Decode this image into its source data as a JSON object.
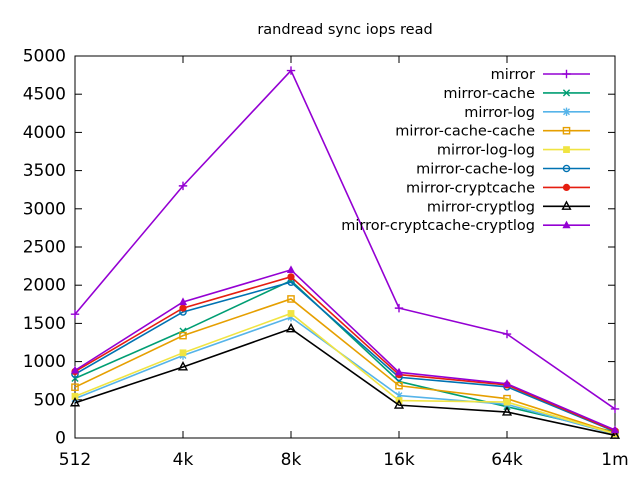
{
  "page": {
    "background": "#ffffff",
    "axis_color": "#000000",
    "text_color": "#000000"
  },
  "chart_data": {
    "type": "line",
    "title": "randread sync iops read",
    "xlabel": "",
    "ylabel": "",
    "categories": [
      "512",
      "4k",
      "8k",
      "16k",
      "64k",
      "1m"
    ],
    "ylim": [
      0,
      5000
    ],
    "yticks": [
      0,
      500,
      1000,
      1500,
      2000,
      2500,
      3000,
      3500,
      4000,
      4500,
      5000
    ],
    "grid": false,
    "legend_position": "top-right-inside",
    "series": [
      {
        "name": "mirror",
        "color": "#9400d3",
        "marker": "plus-marker-icon",
        "values": [
          1620,
          3300,
          4810,
          1700,
          1360,
          380
        ]
      },
      {
        "name": "mirror-cache",
        "color": "#009e73",
        "marker": "times-marker-icon",
        "values": [
          780,
          1400,
          2060,
          740,
          410,
          78
        ]
      },
      {
        "name": "mirror-log",
        "color": "#56b4e9",
        "marker": "asterisk-marker-icon",
        "values": [
          515,
          1080,
          1580,
          555,
          440,
          50
        ]
      },
      {
        "name": "mirror-cache-cache",
        "color": "#e69f00",
        "marker": "square-open-marker-icon",
        "values": [
          665,
          1340,
          1820,
          685,
          515,
          62
        ]
      },
      {
        "name": "mirror-log-log",
        "color": "#f0e442",
        "marker": "square-filled-marker-icon",
        "values": [
          545,
          1115,
          1630,
          490,
          470,
          55
        ]
      },
      {
        "name": "mirror-cache-log",
        "color": "#0072b2",
        "marker": "circle-open-marker-icon",
        "values": [
          835,
          1650,
          2040,
          795,
          670,
          85
        ]
      },
      {
        "name": "mirror-cryptcache",
        "color": "#e51e10",
        "marker": "circle-filled-marker-icon",
        "values": [
          870,
          1700,
          2110,
          830,
          695,
          92
        ]
      },
      {
        "name": "mirror-cryptlog",
        "color": "#000000",
        "marker": "triangle-open-marker-icon",
        "values": [
          460,
          930,
          1430,
          430,
          340,
          35
        ]
      },
      {
        "name": "mirror-cryptcache-cryptlog",
        "color": "#9400d3",
        "marker": "triangle-filled-marker-icon",
        "values": [
          885,
          1780,
          2200,
          860,
          710,
          105
        ]
      }
    ]
  }
}
